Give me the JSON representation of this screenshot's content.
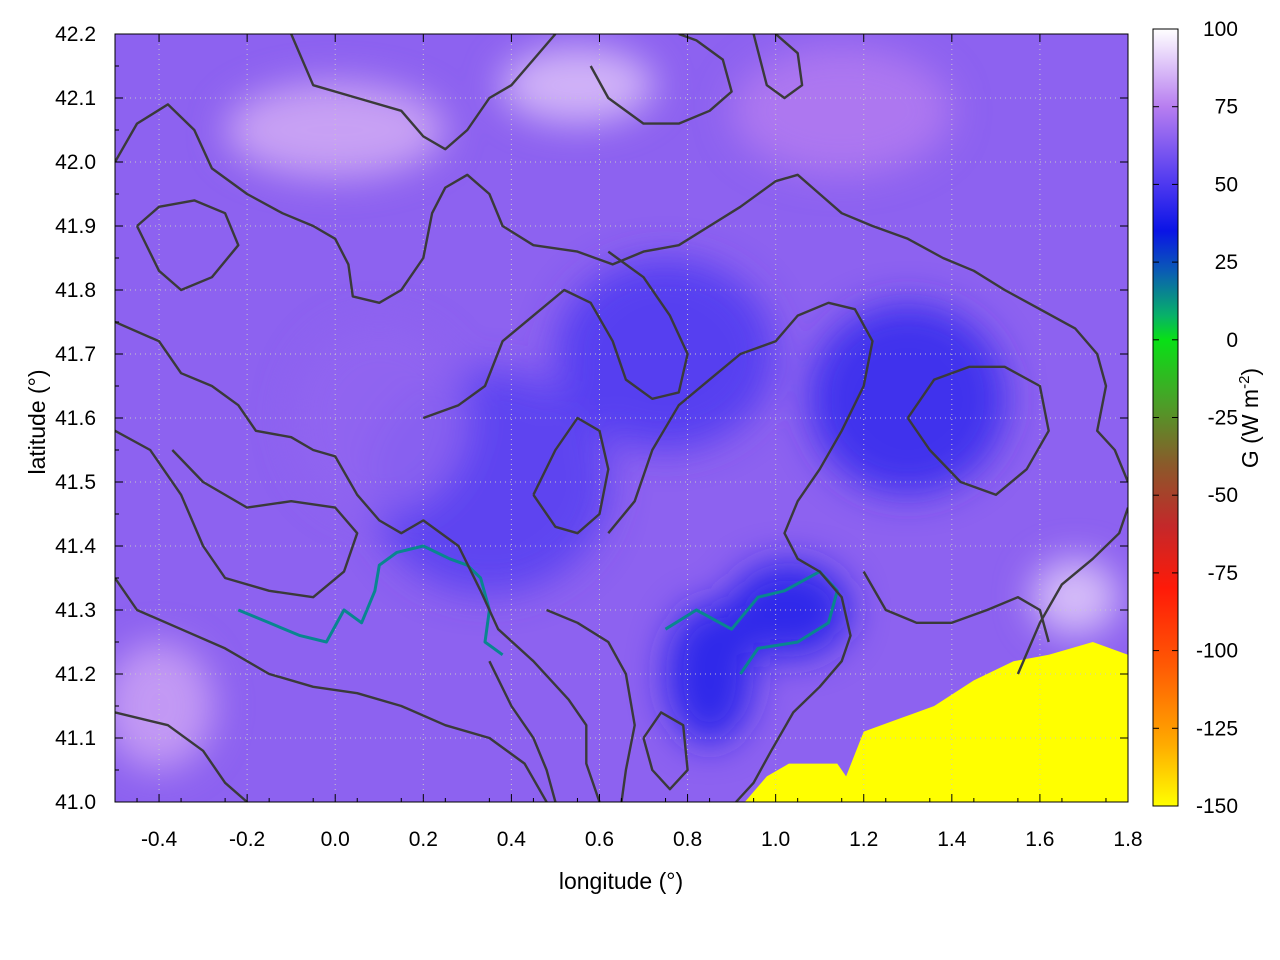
{
  "chart_data": {
    "type": "heatmap",
    "xlabel": "longitude (°)",
    "ylabel": "latitude (°)",
    "xlim": [
      -0.5,
      1.8
    ],
    "ylim": [
      41.0,
      42.2
    ],
    "x_ticks": [
      "-0.4",
      "-0.2",
      "0.0",
      "0.2",
      "0.4",
      "0.6",
      "0.8",
      "1.0",
      "1.2",
      "1.4",
      "1.6",
      "1.8"
    ],
    "y_ticks": [
      "41.0",
      "41.1",
      "41.2",
      "41.3",
      "41.4",
      "41.5",
      "41.6",
      "41.7",
      "41.8",
      "41.9",
      "42.0",
      "42.1",
      "42.2"
    ],
    "grid": true,
    "colorbar": {
      "label_main": "G (W m",
      "label_exp": "-2",
      "label_close": ")",
      "range": [
        -150,
        100
      ],
      "ticks": [
        "100",
        "75",
        "50",
        "25",
        "0",
        "-25",
        "-50",
        "-75",
        "-100",
        "-125",
        "-150"
      ],
      "stops": [
        {
          "value": 100,
          "color": "#ffffff"
        },
        {
          "value": 75,
          "color": "#b77ef0"
        },
        {
          "value": 50,
          "color": "#4d38f0"
        },
        {
          "value": 35,
          "color": "#0a14e6"
        },
        {
          "value": 22,
          "color": "#0a5cb4"
        },
        {
          "value": 8,
          "color": "#08b06a"
        },
        {
          "value": 0,
          "color": "#08e016"
        },
        {
          "value": -20,
          "color": "#4aa028"
        },
        {
          "value": -40,
          "color": "#8a5a2a"
        },
        {
          "value": -60,
          "color": "#c4282a"
        },
        {
          "value": -80,
          "color": "#ff1a08"
        },
        {
          "value": -105,
          "color": "#ff5a04"
        },
        {
          "value": -130,
          "color": "#ffaa00"
        },
        {
          "value": -150,
          "color": "#ffff00"
        }
      ]
    },
    "regions": {
      "sea_color": "#ffff00",
      "sea_value": -150,
      "sea_boundary": [
        [
          0.93,
          41.0
        ],
        [
          0.98,
          41.04
        ],
        [
          1.03,
          41.06
        ],
        [
          1.14,
          41.06
        ],
        [
          1.16,
          41.04
        ],
        [
          1.2,
          41.11
        ],
        [
          1.28,
          41.13
        ],
        [
          1.36,
          41.15
        ],
        [
          1.45,
          41.19
        ],
        [
          1.54,
          41.22
        ],
        [
          1.62,
          41.23
        ],
        [
          1.72,
          41.25
        ],
        [
          1.8,
          41.23
        ]
      ],
      "blobs": [
        {
          "x": 1.03,
          "y": 41.3,
          "w": 0.28,
          "h": 0.15,
          "value": 40
        },
        {
          "x": 1.3,
          "y": 41.63,
          "w": 0.45,
          "h": 0.3,
          "value": 44
        },
        {
          "x": 0.85,
          "y": 41.2,
          "w": 0.2,
          "h": 0.22,
          "value": 40
        },
        {
          "x": 0.35,
          "y": 41.5,
          "w": 0.55,
          "h": 0.35,
          "value": 52
        },
        {
          "x": 0.75,
          "y": 41.7,
          "w": 0.5,
          "h": 0.3,
          "value": 50
        },
        {
          "x": 0.0,
          "y": 42.05,
          "w": 0.5,
          "h": 0.15,
          "value": 84
        },
        {
          "x": 0.55,
          "y": 42.12,
          "w": 0.35,
          "h": 0.12,
          "value": 88
        },
        {
          "x": -0.4,
          "y": 41.15,
          "w": 0.25,
          "h": 0.2,
          "value": 82
        },
        {
          "x": 1.68,
          "y": 41.32,
          "w": 0.2,
          "h": 0.12,
          "value": 90
        },
        {
          "x": 1.15,
          "y": 42.08,
          "w": 0.5,
          "h": 0.2,
          "value": 74
        },
        {
          "x": 0.1,
          "y": 41.6,
          "w": 0.4,
          "h": 0.3,
          "value": 66
        }
      ]
    },
    "rivers": [
      [
        [
          -0.22,
          41.3
        ],
        [
          -0.15,
          41.28
        ],
        [
          -0.08,
          41.26
        ],
        [
          -0.02,
          41.25
        ],
        [
          0.02,
          41.3
        ],
        [
          0.06,
          41.28
        ],
        [
          0.09,
          41.33
        ],
        [
          0.1,
          41.37
        ],
        [
          0.14,
          41.39
        ],
        [
          0.2,
          41.4
        ],
        [
          0.26,
          41.38
        ],
        [
          0.3,
          41.37
        ],
        [
          0.33,
          41.35
        ],
        [
          0.35,
          41.3
        ],
        [
          0.34,
          41.25
        ],
        [
          0.38,
          41.23
        ]
      ],
      [
        [
          0.75,
          41.27
        ],
        [
          0.82,
          41.3
        ],
        [
          0.9,
          41.27
        ],
        [
          0.96,
          41.32
        ],
        [
          1.02,
          41.33
        ],
        [
          1.1,
          41.36
        ],
        [
          1.14,
          41.33
        ],
        [
          1.12,
          41.28
        ],
        [
          1.05,
          41.25
        ],
        [
          0.96,
          41.24
        ],
        [
          0.92,
          41.2
        ]
      ]
    ],
    "contours": [
      [
        [
          -0.5,
          41.75
        ],
        [
          -0.4,
          41.72
        ],
        [
          -0.35,
          41.67
        ],
        [
          -0.28,
          41.65
        ],
        [
          -0.22,
          41.62
        ],
        [
          -0.18,
          41.58
        ],
        [
          -0.1,
          41.57
        ],
        [
          -0.05,
          41.55
        ],
        [
          0.0,
          41.54
        ],
        [
          0.05,
          41.48
        ],
        [
          0.1,
          41.44
        ],
        [
          0.15,
          41.42
        ],
        [
          0.2,
          41.44
        ],
        [
          0.28,
          41.4
        ],
        [
          0.33,
          41.33
        ],
        [
          0.37,
          41.27
        ],
        [
          0.45,
          41.22
        ],
        [
          0.53,
          41.16
        ],
        [
          0.57,
          41.12
        ],
        [
          0.57,
          41.06
        ],
        [
          0.6,
          41.0
        ]
      ],
      [
        [
          -0.5,
          41.35
        ],
        [
          -0.45,
          41.3
        ],
        [
          -0.35,
          41.27
        ],
        [
          -0.25,
          41.24
        ],
        [
          -0.15,
          41.2
        ],
        [
          -0.05,
          41.18
        ],
        [
          0.05,
          41.17
        ],
        [
          0.15,
          41.15
        ],
        [
          0.25,
          41.12
        ],
        [
          0.35,
          41.1
        ],
        [
          0.43,
          41.06
        ],
        [
          0.48,
          41.0
        ]
      ],
      [
        [
          -0.5,
          41.14
        ],
        [
          -0.38,
          41.12
        ],
        [
          -0.3,
          41.08
        ],
        [
          -0.25,
          41.03
        ],
        [
          -0.2,
          41.0
        ]
      ],
      [
        [
          -0.5,
          41.58
        ],
        [
          -0.42,
          41.55
        ],
        [
          -0.35,
          41.48
        ],
        [
          -0.3,
          41.4
        ],
        [
          -0.25,
          41.35
        ],
        [
          -0.15,
          41.33
        ],
        [
          -0.05,
          41.32
        ],
        [
          0.02,
          41.36
        ],
        [
          0.05,
          41.42
        ],
        [
          0.0,
          41.46
        ],
        [
          -0.1,
          41.47
        ],
        [
          -0.2,
          41.46
        ],
        [
          -0.3,
          41.5
        ],
        [
          -0.37,
          41.55
        ]
      ],
      [
        [
          -0.5,
          42.0
        ],
        [
          -0.45,
          42.06
        ],
        [
          -0.38,
          42.09
        ],
        [
          -0.32,
          42.05
        ],
        [
          -0.28,
          41.99
        ],
        [
          -0.2,
          41.95
        ],
        [
          -0.12,
          41.92
        ],
        [
          -0.05,
          41.9
        ],
        [
          0.0,
          41.88
        ],
        [
          0.03,
          41.84
        ],
        [
          0.04,
          41.79
        ],
        [
          0.1,
          41.78
        ],
        [
          0.15,
          41.8
        ],
        [
          0.2,
          41.85
        ],
        [
          0.22,
          41.92
        ],
        [
          0.25,
          41.96
        ],
        [
          0.3,
          41.98
        ],
        [
          0.35,
          41.95
        ],
        [
          0.38,
          41.9
        ],
        [
          0.45,
          41.87
        ],
        [
          0.55,
          41.86
        ],
        [
          0.63,
          41.84
        ],
        [
          0.7,
          41.86
        ],
        [
          0.78,
          41.87
        ],
        [
          0.85,
          41.9
        ],
        [
          0.92,
          41.93
        ],
        [
          1.0,
          41.97
        ],
        [
          1.05,
          41.98
        ],
        [
          1.1,
          41.95
        ],
        [
          1.15,
          41.92
        ],
        [
          1.22,
          41.9
        ],
        [
          1.3,
          41.88
        ],
        [
          1.38,
          41.85
        ],
        [
          1.45,
          41.83
        ],
        [
          1.52,
          41.8
        ],
        [
          1.6,
          41.77
        ],
        [
          1.68,
          41.74
        ],
        [
          1.73,
          41.7
        ],
        [
          1.75,
          41.65
        ],
        [
          1.73,
          41.58
        ],
        [
          1.77,
          41.55
        ],
        [
          1.8,
          41.5
        ]
      ],
      [
        [
          -0.1,
          42.2
        ],
        [
          -0.05,
          42.12
        ],
        [
          0.05,
          42.1
        ],
        [
          0.15,
          42.08
        ],
        [
          0.2,
          42.04
        ],
        [
          0.25,
          42.02
        ],
        [
          0.3,
          42.05
        ],
        [
          0.35,
          42.1
        ],
        [
          0.4,
          42.12
        ],
        [
          0.45,
          42.16
        ],
        [
          0.5,
          42.2
        ]
      ],
      [
        [
          0.58,
          42.15
        ],
        [
          0.62,
          42.1
        ],
        [
          0.7,
          42.06
        ],
        [
          0.78,
          42.06
        ],
        [
          0.85,
          42.08
        ],
        [
          0.9,
          42.11
        ],
        [
          0.88,
          42.16
        ],
        [
          0.82,
          42.19
        ],
        [
          0.78,
          42.2
        ]
      ],
      [
        [
          0.95,
          42.2
        ],
        [
          0.98,
          42.12
        ],
        [
          1.02,
          42.1
        ],
        [
          1.06,
          42.12
        ],
        [
          1.05,
          42.17
        ],
        [
          1.0,
          42.2
        ]
      ],
      [
        [
          0.62,
          41.42
        ],
        [
          0.68,
          41.47
        ],
        [
          0.72,
          41.55
        ],
        [
          0.78,
          41.62
        ],
        [
          0.85,
          41.66
        ],
        [
          0.92,
          41.7
        ],
        [
          1.0,
          41.72
        ],
        [
          1.05,
          41.76
        ],
        [
          1.12,
          41.78
        ],
        [
          1.18,
          41.77
        ],
        [
          1.22,
          41.72
        ],
        [
          1.2,
          41.65
        ],
        [
          1.15,
          41.58
        ],
        [
          1.1,
          41.52
        ],
        [
          1.05,
          41.47
        ],
        [
          1.02,
          41.42
        ],
        [
          1.05,
          41.38
        ],
        [
          1.1,
          41.36
        ],
        [
          1.15,
          41.32
        ],
        [
          1.17,
          41.26
        ],
        [
          1.15,
          41.22
        ],
        [
          1.1,
          41.18
        ],
        [
          1.04,
          41.14
        ],
        [
          0.99,
          41.08
        ],
        [
          0.95,
          41.03
        ],
        [
          0.91,
          41.0
        ]
      ],
      [
        [
          0.2,
          41.6
        ],
        [
          0.28,
          41.62
        ],
        [
          0.34,
          41.65
        ],
        [
          0.38,
          41.72
        ],
        [
          0.45,
          41.76
        ],
        [
          0.52,
          41.8
        ],
        [
          0.58,
          41.78
        ],
        [
          0.63,
          41.72
        ],
        [
          0.66,
          41.66
        ],
        [
          0.72,
          41.63
        ],
        [
          0.78,
          41.64
        ],
        [
          0.8,
          41.7
        ],
        [
          0.76,
          41.76
        ],
        [
          0.7,
          41.82
        ],
        [
          0.62,
          41.86
        ]
      ],
      [
        [
          0.45,
          41.48
        ],
        [
          0.5,
          41.55
        ],
        [
          0.55,
          41.6
        ],
        [
          0.6,
          41.58
        ],
        [
          0.62,
          41.52
        ],
        [
          0.6,
          41.45
        ],
        [
          0.55,
          41.42
        ],
        [
          0.5,
          41.43
        ],
        [
          0.45,
          41.48
        ]
      ],
      [
        [
          1.3,
          41.6
        ],
        [
          1.35,
          41.55
        ],
        [
          1.42,
          41.5
        ],
        [
          1.5,
          41.48
        ],
        [
          1.57,
          41.52
        ],
        [
          1.62,
          41.58
        ],
        [
          1.6,
          41.65
        ],
        [
          1.52,
          41.68
        ],
        [
          1.44,
          41.68
        ],
        [
          1.36,
          41.66
        ],
        [
          1.3,
          41.6
        ]
      ],
      [
        [
          1.55,
          41.2
        ],
        [
          1.6,
          41.28
        ],
        [
          1.65,
          41.34
        ],
        [
          1.72,
          41.38
        ],
        [
          1.78,
          41.42
        ],
        [
          1.8,
          41.46
        ]
      ],
      [
        [
          1.2,
          41.36
        ],
        [
          1.25,
          41.3
        ],
        [
          1.32,
          41.28
        ],
        [
          1.4,
          41.28
        ],
        [
          1.48,
          41.3
        ],
        [
          1.55,
          41.32
        ],
        [
          1.6,
          41.3
        ],
        [
          1.62,
          41.25
        ]
      ],
      [
        [
          -0.45,
          41.9
        ],
        [
          -0.4,
          41.83
        ],
        [
          -0.35,
          41.8
        ],
        [
          -0.28,
          41.82
        ],
        [
          -0.22,
          41.87
        ],
        [
          -0.25,
          41.92
        ],
        [
          -0.32,
          41.94
        ],
        [
          -0.4,
          41.93
        ],
        [
          -0.45,
          41.9
        ]
      ],
      [
        [
          0.7,
          41.1
        ],
        [
          0.72,
          41.05
        ],
        [
          0.76,
          41.02
        ],
        [
          0.8,
          41.05
        ],
        [
          0.79,
          41.12
        ],
        [
          0.74,
          41.14
        ],
        [
          0.7,
          41.1
        ]
      ],
      [
        [
          0.35,
          41.22
        ],
        [
          0.4,
          41.15
        ],
        [
          0.45,
          41.1
        ],
        [
          0.48,
          41.05
        ],
        [
          0.5,
          41.0
        ]
      ],
      [
        [
          0.48,
          41.3
        ],
        [
          0.55,
          41.28
        ],
        [
          0.62,
          41.25
        ],
        [
          0.66,
          41.2
        ],
        [
          0.68,
          41.12
        ],
        [
          0.66,
          41.05
        ],
        [
          0.65,
          41.0
        ]
      ]
    ]
  }
}
